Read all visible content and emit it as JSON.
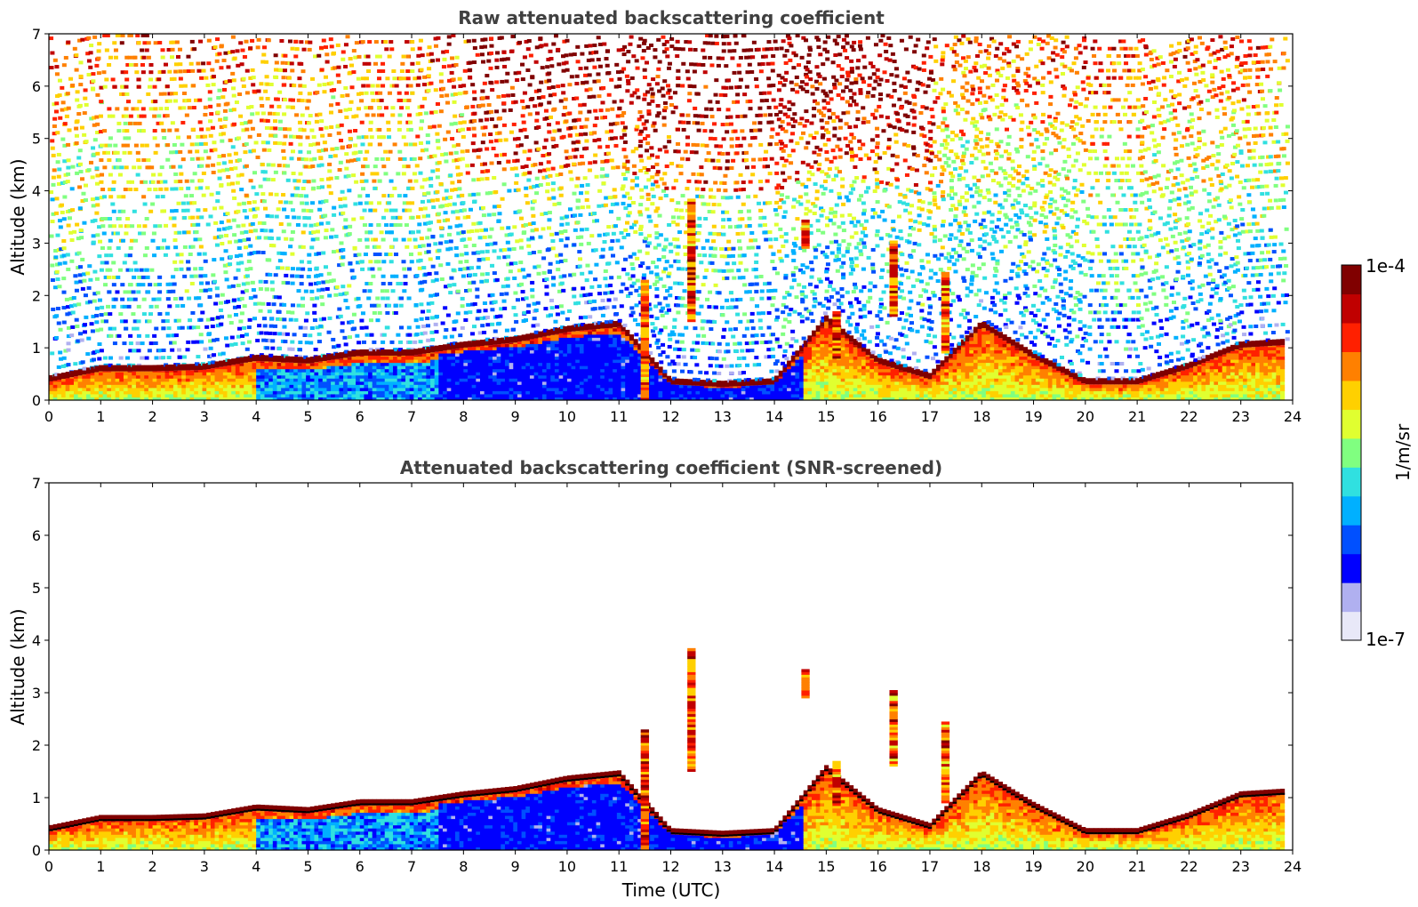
{
  "chart_data": [
    {
      "type": "heatmap",
      "title": "Raw attenuated backscattering coefficient",
      "xlabel": "",
      "ylabel": "Altitude (km)",
      "xlim": [
        0,
        24
      ],
      "ylim": [
        0,
        7
      ],
      "x_ticks": [
        "0",
        "1",
        "2",
        "3",
        "4",
        "5",
        "6",
        "7",
        "8",
        "9",
        "10",
        "11",
        "12",
        "13",
        "14",
        "15",
        "16",
        "17",
        "18",
        "19",
        "20",
        "21",
        "22",
        "23",
        "24"
      ],
      "y_ticks": [
        "0",
        "1",
        "2",
        "3",
        "4",
        "5",
        "6",
        "7"
      ],
      "noise_above_layer": true,
      "layer_top_km": [
        [
          0,
          0.35
        ],
        [
          1,
          0.55
        ],
        [
          2,
          0.55
        ],
        [
          3,
          0.58
        ],
        [
          4,
          0.75
        ],
        [
          5,
          0.7
        ],
        [
          6,
          0.85
        ],
        [
          7,
          0.85
        ],
        [
          8,
          1.0
        ],
        [
          9,
          1.1
        ],
        [
          10,
          1.3
        ],
        [
          11,
          1.4
        ],
        [
          12,
          0.3
        ],
        [
          13,
          0.25
        ],
        [
          14,
          0.3
        ],
        [
          15,
          1.5
        ],
        [
          16,
          0.7
        ],
        [
          17,
          0.4
        ],
        [
          18,
          1.4
        ],
        [
          19,
          0.8
        ],
        [
          20,
          0.3
        ],
        [
          21,
          0.3
        ],
        [
          22,
          0.6
        ],
        [
          23,
          1.0
        ],
        [
          23.8,
          1.05
        ]
      ],
      "cloud_features": [
        {
          "t": 11.5,
          "alt_km": [
            0,
            2.3
          ]
        },
        {
          "t": 12.4,
          "alt_km": [
            1.5,
            3.8
          ]
        },
        {
          "t": 14.6,
          "alt_km": [
            2.9,
            3.4
          ]
        },
        {
          "t": 15.2,
          "alt_km": [
            0.8,
            1.7
          ]
        },
        {
          "t": 16.3,
          "alt_km": [
            1.6,
            3.0
          ]
        },
        {
          "t": 17.3,
          "alt_km": [
            0.9,
            2.4
          ]
        }
      ]
    },
    {
      "type": "heatmap",
      "title": "Attenuated backscattering coefficient (SNR-screened)",
      "xlabel": "Time (UTC)",
      "ylabel": "Altitude (km)",
      "xlim": [
        0,
        24
      ],
      "ylim": [
        0,
        7
      ],
      "x_ticks": [
        "0",
        "1",
        "2",
        "3",
        "4",
        "5",
        "6",
        "7",
        "8",
        "9",
        "10",
        "11",
        "12",
        "13",
        "14",
        "15",
        "16",
        "17",
        "18",
        "19",
        "20",
        "21",
        "22",
        "23",
        "24"
      ],
      "y_ticks": [
        "0",
        "1",
        "2",
        "3",
        "4",
        "5",
        "6",
        "7"
      ],
      "noise_above_layer": false,
      "layer_top_km": [
        [
          0,
          0.35
        ],
        [
          1,
          0.55
        ],
        [
          2,
          0.55
        ],
        [
          3,
          0.58
        ],
        [
          4,
          0.75
        ],
        [
          5,
          0.7
        ],
        [
          6,
          0.85
        ],
        [
          7,
          0.85
        ],
        [
          8,
          1.0
        ],
        [
          9,
          1.1
        ],
        [
          10,
          1.3
        ],
        [
          11,
          1.4
        ],
        [
          12,
          0.3
        ],
        [
          13,
          0.25
        ],
        [
          14,
          0.3
        ],
        [
          15,
          1.5
        ],
        [
          16,
          0.7
        ],
        [
          17,
          0.4
        ],
        [
          18,
          1.4
        ],
        [
          19,
          0.8
        ],
        [
          20,
          0.3
        ],
        [
          21,
          0.3
        ],
        [
          22,
          0.6
        ],
        [
          23,
          1.0
        ],
        [
          23.8,
          1.05
        ]
      ],
      "cloud_features": [
        {
          "t": 11.5,
          "alt_km": [
            0,
            2.3
          ]
        },
        {
          "t": 12.4,
          "alt_km": [
            1.5,
            3.8
          ]
        },
        {
          "t": 14.6,
          "alt_km": [
            2.9,
            3.4
          ]
        },
        {
          "t": 15.2,
          "alt_km": [
            0.8,
            1.7
          ]
        },
        {
          "t": 16.3,
          "alt_km": [
            1.6,
            3.0
          ]
        },
        {
          "t": 17.3,
          "alt_km": [
            0.9,
            2.4
          ]
        }
      ]
    }
  ],
  "colorbar": {
    "label": "1/m/sr",
    "max_label": "1e-4",
    "min_label": "1e-7",
    "colors": [
      "#e8e8f8",
      "#b0b0f0",
      "#0000ff",
      "#0050ff",
      "#00b0ff",
      "#30e0e0",
      "#80ff80",
      "#e0ff30",
      "#ffd000",
      "#ff8000",
      "#ff2000",
      "#c00000",
      "#800000"
    ]
  }
}
